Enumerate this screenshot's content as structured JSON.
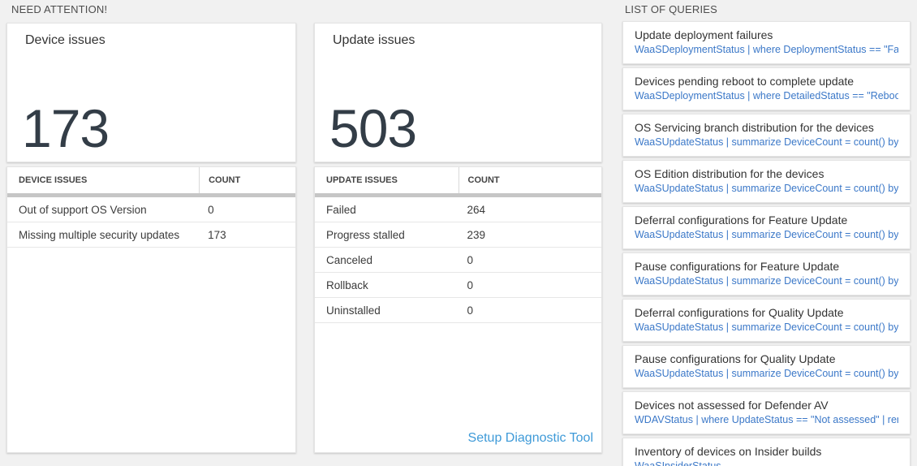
{
  "sections": {
    "need_attention_label": "NEED ATTENTION!",
    "list_of_queries_label": "LIST OF QUERIES"
  },
  "device_card": {
    "title": "Device issues",
    "big_number": "173",
    "table": {
      "header_issue": "DEVICE ISSUES",
      "header_count": "COUNT",
      "rows": [
        {
          "label": "Out of support OS Version",
          "count": "0"
        },
        {
          "label": "Missing multiple security updates",
          "count": "173"
        }
      ]
    }
  },
  "update_card": {
    "title": "Update issues",
    "big_number": "503",
    "table": {
      "header_issue": "UPDATE ISSUES",
      "header_count": "COUNT",
      "rows": [
        {
          "label": "Failed",
          "count": "264"
        },
        {
          "label": "Progress stalled",
          "count": "239"
        },
        {
          "label": "Canceled",
          "count": "0"
        },
        {
          "label": "Rollback",
          "count": "0"
        },
        {
          "label": "Uninstalled",
          "count": "0"
        }
      ]
    },
    "footer_link_label": "Setup Diagnostic Tool"
  },
  "queries": {
    "items": [
      {
        "title": "Update deployment failures",
        "query": "WaaSDeploymentStatus | where DeploymentStatus == \"Failed\" |..."
      },
      {
        "title": "Devices pending reboot to complete update",
        "query": "WaaSDeploymentStatus | where DetailedStatus == \"Reboot pend..."
      },
      {
        "title": "OS Servicing branch distribution for the devices",
        "query": "WaaSUpdateStatus | summarize DeviceCount = count() by OSSer..."
      },
      {
        "title": "OS Edition distribution for the devices",
        "query": "WaaSUpdateStatus | summarize DeviceCount = count() by OSEdit..."
      },
      {
        "title": "Deferral configurations for Feature Update",
        "query": "WaaSUpdateStatus | summarize DeviceCount = count() by Featur..."
      },
      {
        "title": "Pause configurations for Feature Update",
        "query": "WaaSUpdateStatus | summarize DeviceCount = count() by Featur..."
      },
      {
        "title": "Deferral configurations for Quality Update",
        "query": "WaaSUpdateStatus | summarize DeviceCount = count() by Qualit..."
      },
      {
        "title": "Pause configurations for Quality Update",
        "query": "WaaSUpdateStatus | summarize DeviceCount = count() by Qualit..."
      },
      {
        "title": "Devices not assessed for Defender AV",
        "query": "WDAVStatus | where UpdateStatus == \"Not assessed\" | render ta..."
      },
      {
        "title": "Inventory of devices on Insider builds",
        "query": "WaaSInsiderStatus"
      }
    ]
  },
  "colors": {
    "page_background": "#f1f1f1",
    "card_background": "#ffffff",
    "big_number_color": "#333d47",
    "query_link_blue": "#3b78c8",
    "footer_link_blue": "#3e9ad8",
    "thick_bar_gray": "#c6c6c6"
  }
}
